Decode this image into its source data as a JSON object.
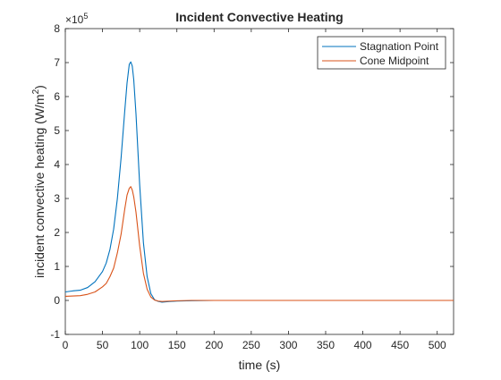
{
  "chart_data": {
    "type": "line",
    "title": "Incident Convective Heating",
    "xlabel": "time (s)",
    "ylabel_main": "incident convective heating (W/m",
    "ylabel_sup": "2",
    "ylabel_close": ")",
    "exponent_base": "×10",
    "exponent_power": "5",
    "xlim": [
      0,
      522
    ],
    "ylim": [
      -1,
      8
    ],
    "x_ticks": [
      0,
      50,
      100,
      150,
      200,
      250,
      300,
      350,
      400,
      450,
      500
    ],
    "y_ticks": [
      -1,
      0,
      1,
      2,
      3,
      4,
      5,
      6,
      7,
      8
    ],
    "legend_position": "top-right",
    "grid": false,
    "series": [
      {
        "name": "Stagnation Point",
        "color": "#0072BD",
        "x": [
          0,
          10,
          20,
          30,
          40,
          50,
          55,
          60,
          65,
          70,
          75,
          80,
          83,
          86,
          88,
          90,
          92,
          95,
          100,
          105,
          110,
          115,
          120,
          125,
          130,
          140,
          150,
          170,
          200,
          250,
          300,
          400,
          522
        ],
        "y": [
          0.25,
          0.28,
          0.3,
          0.38,
          0.55,
          0.85,
          1.1,
          1.5,
          2.1,
          3.0,
          4.2,
          5.6,
          6.4,
          6.95,
          7.02,
          6.9,
          6.5,
          5.5,
          3.4,
          1.7,
          0.7,
          0.2,
          0.02,
          -0.03,
          -0.05,
          -0.03,
          -0.02,
          -0.01,
          0.0,
          0.0,
          0.0,
          0.0,
          0.0
        ]
      },
      {
        "name": "Cone Midpoint",
        "color": "#D95319",
        "x": [
          0,
          10,
          20,
          30,
          40,
          50,
          55,
          60,
          65,
          70,
          75,
          80,
          83,
          86,
          88,
          90,
          92,
          95,
          100,
          105,
          110,
          115,
          120,
          125,
          130,
          140,
          150,
          170,
          200,
          250,
          300,
          400,
          522
        ],
        "y": [
          0.12,
          0.13,
          0.14,
          0.18,
          0.25,
          0.4,
          0.5,
          0.7,
          0.95,
          1.4,
          1.95,
          2.7,
          3.1,
          3.3,
          3.35,
          3.25,
          3.05,
          2.6,
          1.6,
          0.8,
          0.33,
          0.1,
          0.01,
          -0.02,
          -0.03,
          -0.02,
          -0.01,
          0.0,
          0.0,
          0.0,
          0.0,
          0.0,
          0.0
        ]
      }
    ]
  }
}
